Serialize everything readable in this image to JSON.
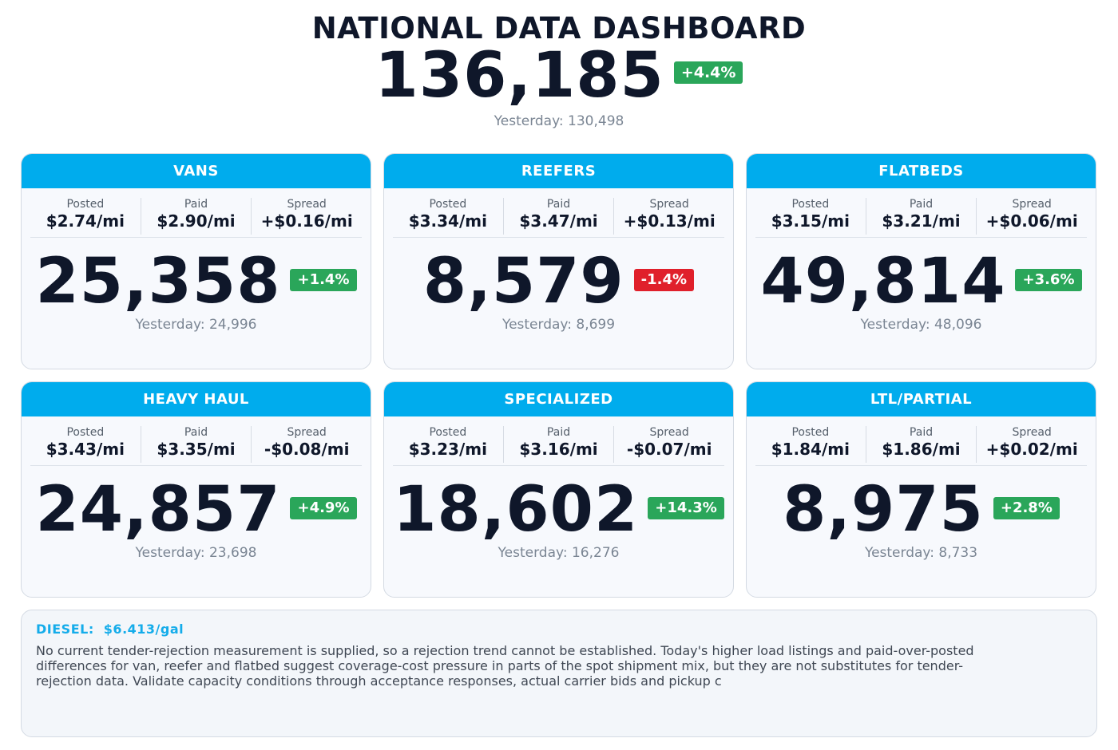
{
  "header": {
    "title": "NATIONAL DATA DASHBOARD",
    "total": "136,185",
    "total_change": "+4.4%",
    "total_yesterday": "Yesterday: 130,498"
  },
  "labels": {
    "posted": "Posted",
    "paid": "Paid",
    "spread": "Spread"
  },
  "cards": [
    {
      "name": "VANS",
      "posted": "$2.74/mi",
      "paid": "$2.90/mi",
      "spread": "+$0.16/mi",
      "count": "25,358",
      "change": "+1.4%",
      "direction": "up",
      "yesterday": "Yesterday: 24,996"
    },
    {
      "name": "REEFERS",
      "posted": "$3.34/mi",
      "paid": "$3.47/mi",
      "spread": "+$0.13/mi",
      "count": "8,579",
      "change": "-1.4%",
      "direction": "down",
      "yesterday": "Yesterday: 8,699"
    },
    {
      "name": "FLATBEDS",
      "posted": "$3.15/mi",
      "paid": "$3.21/mi",
      "spread": "+$0.06/mi",
      "count": "49,814",
      "change": "+3.6%",
      "direction": "up",
      "yesterday": "Yesterday: 48,096"
    },
    {
      "name": "HEAVY HAUL",
      "posted": "$3.43/mi",
      "paid": "$3.35/mi",
      "spread": "-$0.08/mi",
      "count": "24,857",
      "change": "+4.9%",
      "direction": "up",
      "yesterday": "Yesterday: 23,698"
    },
    {
      "name": "SPECIALIZED",
      "posted": "$3.23/mi",
      "paid": "$3.16/mi",
      "spread": "-$0.07/mi",
      "count": "18,602",
      "change": "+14.3%",
      "direction": "up",
      "yesterday": "Yesterday: 16,276"
    },
    {
      "name": "LTL/PARTIAL",
      "posted": "$1.84/mi",
      "paid": "$1.86/mi",
      "spread": "+$0.02/mi",
      "count": "8,975",
      "change": "+2.8%",
      "direction": "up",
      "yesterday": "Yesterday: 8,733"
    }
  ],
  "diesel": {
    "label": "DIESEL:",
    "price": "$6.413/gal",
    "notes": "No current tender-rejection measurement is supplied, so a rejection trend cannot be established. Today's higher load listings and paid-over-posted differences for van, reefer and flatbed suggest coverage-cost pressure in parts of the spot shipment mix, but they are not substitutes for tender-rejection data. Validate capacity conditions through acceptance responses, actual carrier bids and pickup c"
  },
  "colors": {
    "header_blue": "#00aced",
    "up": "#2aa65a",
    "down": "#e0202b",
    "text_dark": "#0f172a"
  }
}
